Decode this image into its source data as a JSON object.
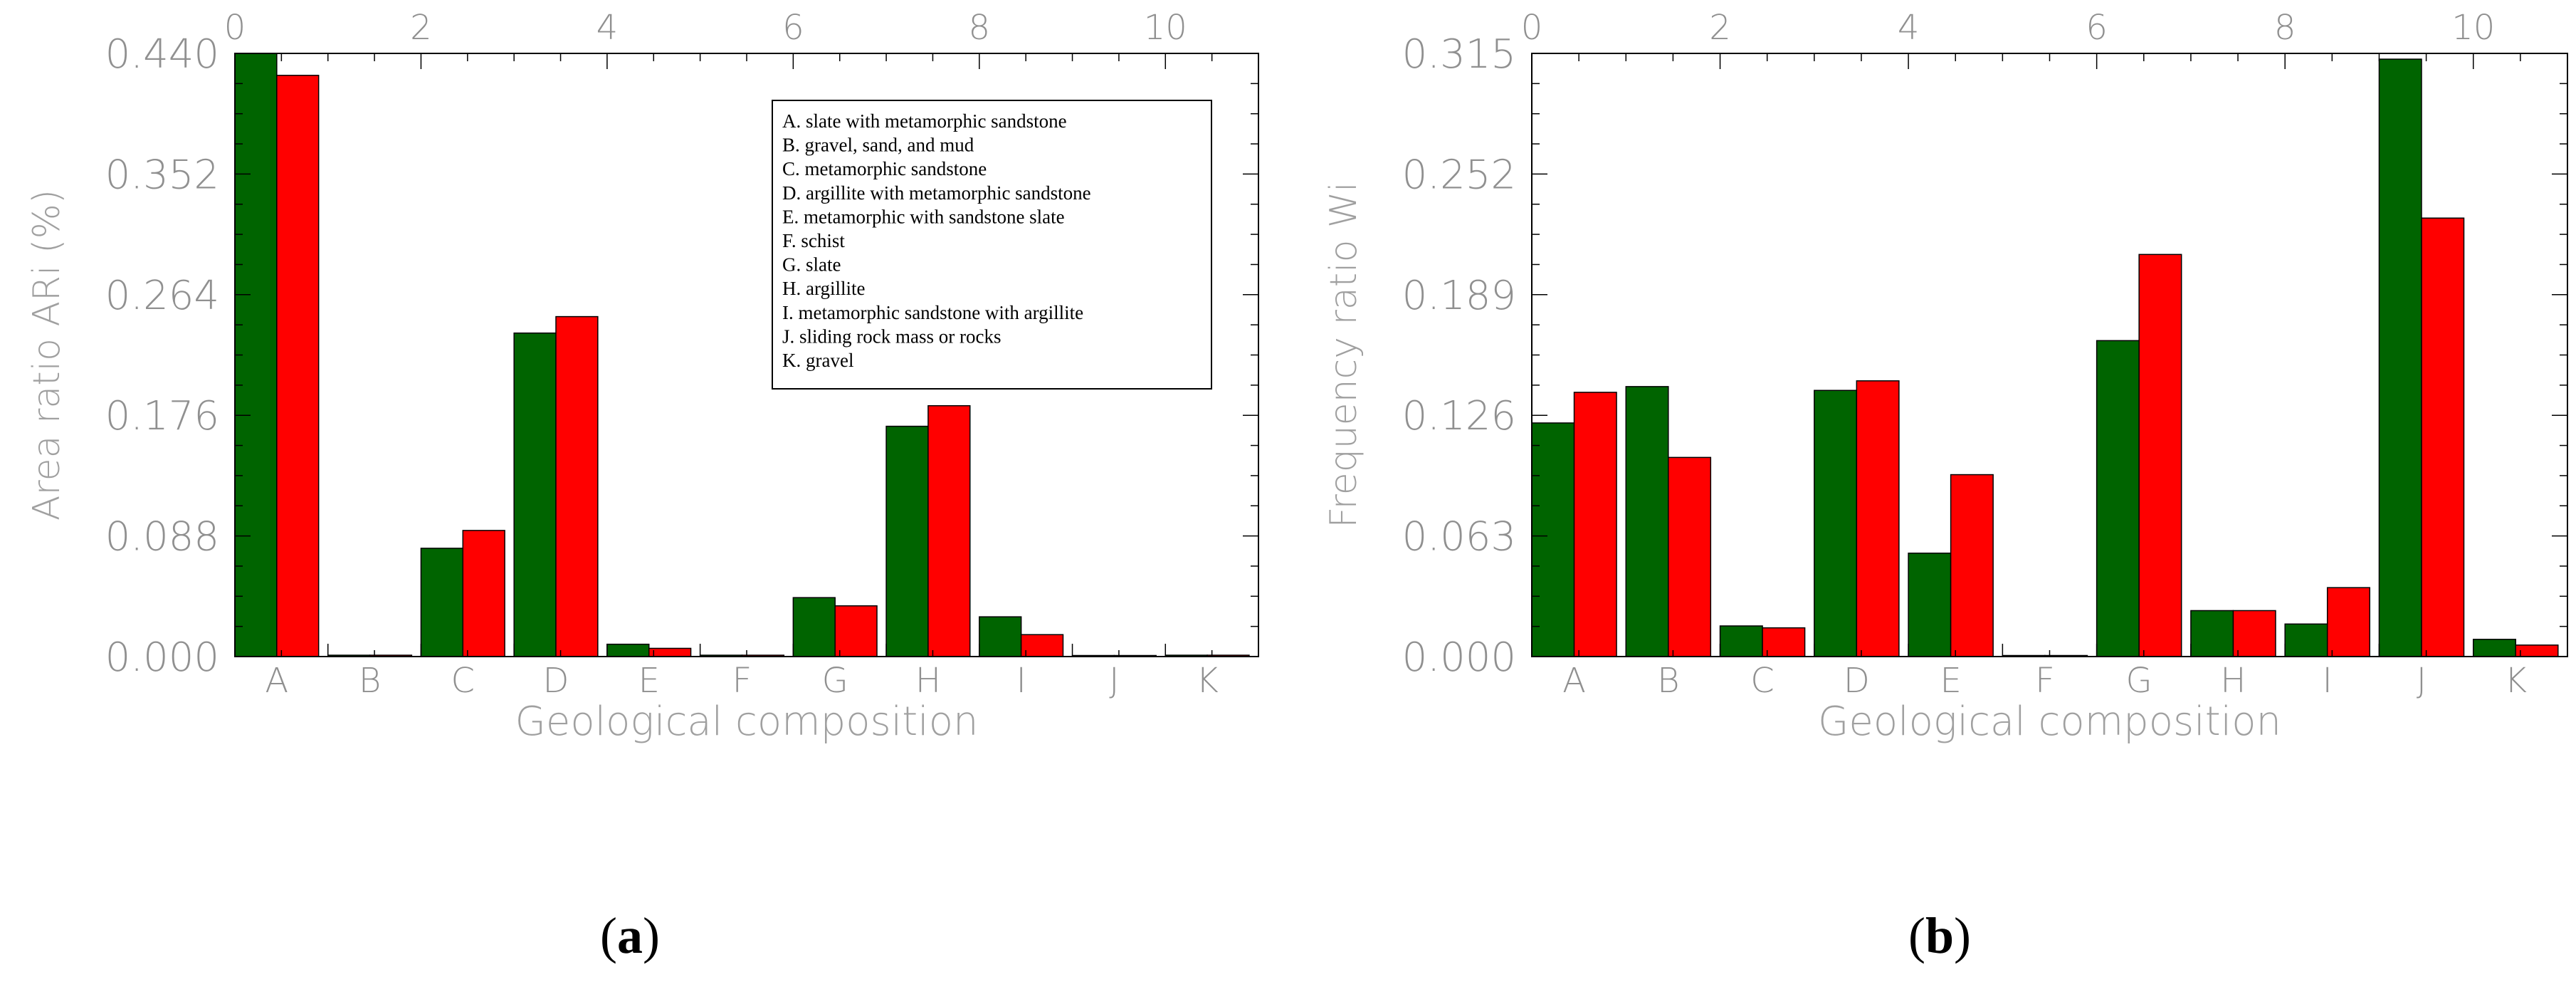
{
  "colors": {
    "series_green": "#006400",
    "series_red": "#ff0000",
    "axis": "#000000",
    "tick_text": "#909090"
  },
  "chart_data": [
    {
      "type": "bar",
      "panel_label": "a",
      "xlabel": "Geological composition",
      "ylabel": "Area ratio ARi (%)",
      "categories": [
        "A",
        "B",
        "C",
        "D",
        "E",
        "F",
        "G",
        "H",
        "I",
        "J",
        "K"
      ],
      "top_axis_ticks": [
        "0",
        "2",
        "4",
        "6",
        "8",
        "10"
      ],
      "top_axis_range": [
        0,
        11
      ],
      "yticks": [
        "0.000",
        "0.088",
        "0.176",
        "0.264",
        "0.352",
        "0.440"
      ],
      "ylim": [
        0,
        0.44
      ],
      "series": [
        {
          "color": "#006400",
          "values": [
            0.44,
            0.001,
            0.079,
            0.236,
            0.009,
            0.001,
            0.043,
            0.168,
            0.029,
            0.0005,
            0.001
          ]
        },
        {
          "color": "#ff0000",
          "values": [
            0.424,
            0.001,
            0.092,
            0.248,
            0.006,
            0.001,
            0.037,
            0.183,
            0.016,
            0.0005,
            0.001
          ]
        }
      ],
      "legend": {
        "position": "top-right",
        "entries": [
          "A.  slate with metamorphic sandstone",
          "B.  gravel, sand, and mud",
          "C.  metamorphic sandstone",
          "D.  argillite with metamorphic sandstone",
          "E.  metamorphic with sandstone slate",
          "F.  schist",
          "G.  slate",
          "H.  argillite",
          "I.   metamorphic sandstone with argillite",
          "J.  sliding rock mass or rocks",
          "K.  gravel"
        ]
      }
    },
    {
      "type": "bar",
      "panel_label": "b",
      "xlabel": "Geological composition",
      "ylabel": "Frequency ratio Wi",
      "categories": [
        "A",
        "B",
        "C",
        "D",
        "E",
        "F",
        "G",
        "H",
        "I",
        "J",
        "K"
      ],
      "top_axis_ticks": [
        "0",
        "2",
        "4",
        "6",
        "8",
        "10"
      ],
      "top_axis_range": [
        0,
        11
      ],
      "yticks": [
        "0.000",
        "0.063",
        "0.126",
        "0.189",
        "0.252",
        "0.315"
      ],
      "ylim": [
        0,
        0.315
      ],
      "series": [
        {
          "color": "#006400",
          "values": [
            0.122,
            0.141,
            0.016,
            0.139,
            0.054,
            0.0005,
            0.165,
            0.024,
            0.017,
            0.312,
            0.009
          ]
        },
        {
          "color": "#ff0000",
          "values": [
            0.138,
            0.104,
            0.015,
            0.144,
            0.095,
            0.0005,
            0.21,
            0.024,
            0.036,
            0.229,
            0.006
          ]
        }
      ]
    }
  ]
}
